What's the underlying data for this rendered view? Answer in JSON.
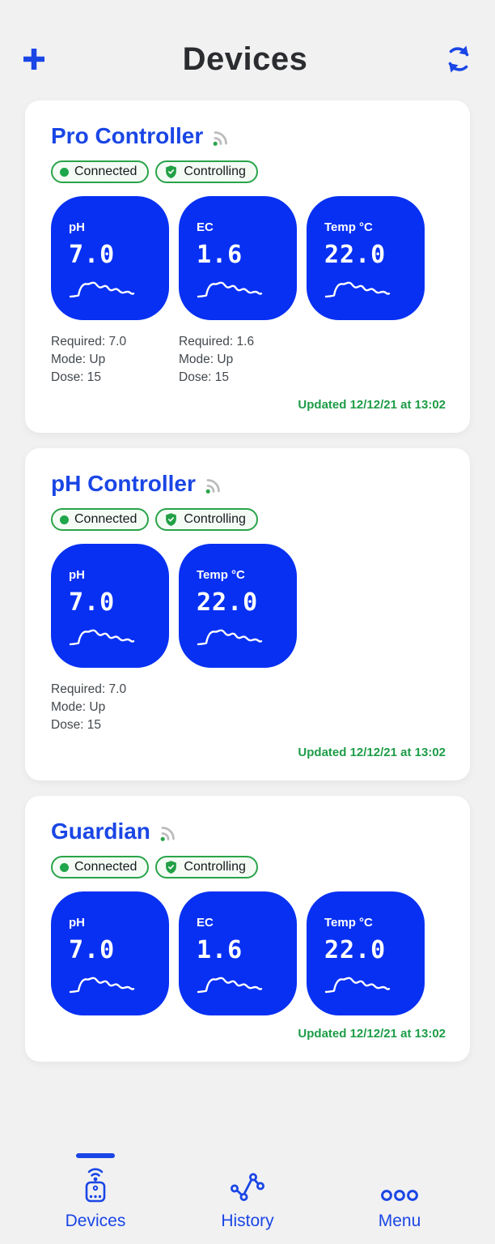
{
  "colors": {
    "accent_blue": "#1a46e5",
    "tile_blue": "#0730f2",
    "updated_green": "#1d9c47",
    "badge_green": "#2aa44a",
    "background": "#f1f1f2"
  },
  "header": {
    "title": "Devices",
    "add_icon": "plus-icon",
    "refresh_icon": "sync-icon"
  },
  "cards": [
    {
      "title": "Pro Controller",
      "badges": [
        {
          "icon": "dot",
          "label": "Connected"
        },
        {
          "icon": "shield",
          "label": "Controlling"
        }
      ],
      "tiles": [
        {
          "label": "pH",
          "value": "7.0"
        },
        {
          "label": "EC",
          "value": "1.6"
        },
        {
          "label": "Temp °C",
          "value": "22.0"
        }
      ],
      "info_columns": [
        [
          "Required: 7.0",
          "Mode: Up",
          "Dose: 15"
        ],
        [
          "Required: 1.6",
          "Mode: Up",
          "Dose: 15"
        ]
      ],
      "updated": "Updated 12/12/21 at 13:02"
    },
    {
      "title": "pH Controller",
      "badges": [
        {
          "icon": "dot",
          "label": "Connected"
        },
        {
          "icon": "shield",
          "label": "Controlling"
        }
      ],
      "tiles": [
        {
          "label": "pH",
          "value": "7.0"
        },
        {
          "label": "Temp °C",
          "value": "22.0"
        }
      ],
      "info_columns": [
        [
          "Required: 7.0",
          "Mode: Up",
          "Dose: 15"
        ]
      ],
      "updated": "Updated 12/12/21 at 13:02"
    },
    {
      "title": "Guardian",
      "badges": [
        {
          "icon": "dot",
          "label": "Connected"
        },
        {
          "icon": "shield",
          "label": "Controlling"
        }
      ],
      "tiles": [
        {
          "label": "pH",
          "value": "7.0"
        },
        {
          "label": "EC",
          "value": "1.6"
        },
        {
          "label": "Temp °C",
          "value": "22.0"
        }
      ],
      "info_columns": [],
      "updated": "Updated 12/12/21 at 13:02"
    }
  ],
  "bottom_nav": {
    "items": [
      {
        "label": "Devices",
        "icon": "device-icon",
        "active": true
      },
      {
        "label": "History",
        "icon": "history-icon",
        "active": false
      },
      {
        "label": "Menu",
        "icon": "menu-icon",
        "active": false
      }
    ]
  }
}
